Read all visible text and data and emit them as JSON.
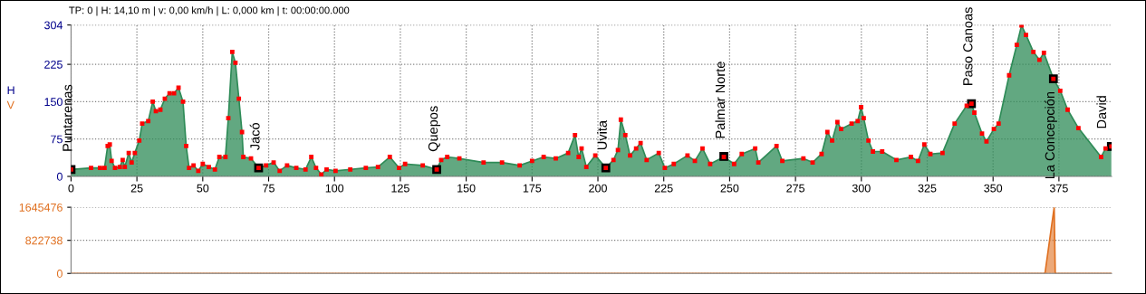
{
  "chart_data": [
    {
      "type": "area",
      "title": "TP: 0 | H: 14,10 m | v: 0,00 km/h | L: 0,000 km | t: 00:00:00.000",
      "ylabel": "H",
      "xlim": [
        0,
        395
      ],
      "xticks": [
        0,
        25,
        50,
        75,
        100,
        125,
        150,
        175,
        200,
        225,
        250,
        275,
        300,
        325,
        350,
        375
      ],
      "ylim": [
        0,
        304
      ],
      "yticks": [
        0,
        75,
        150,
        225,
        304
      ],
      "grid": true,
      "legend": false,
      "x": [
        0,
        7.6,
        11,
        12.7,
        13.9,
        14.7,
        15.4,
        16.7,
        18.5,
        19.6,
        20.4,
        21.9,
        23,
        24.2,
        25.9,
        27,
        29.3,
        31,
        32.2,
        33.9,
        35.6,
        37.4,
        39.1,
        40.8,
        42.5,
        43.7,
        44.8,
        46.5,
        48.3,
        50,
        52.3,
        54.6,
        56.3,
        58.6,
        59.7,
        61.2,
        62.4,
        63.7,
        64.9,
        65.4,
        68.3,
        71.2,
        74,
        76.9,
        79.2,
        82,
        85.5,
        89,
        91.2,
        93,
        95,
        97,
        100.4,
        106,
        111.9,
        116.5,
        121,
        124.5,
        126.8,
        133.5,
        138.8,
        140.5,
        142.8,
        147.4,
        156.6,
        163.6,
        170.3,
        175,
        179.4,
        184,
        188.7,
        191.3,
        192.7,
        193.8,
        195.6,
        199,
        203,
        205.9,
        207.6,
        208.7,
        210.4,
        212.2,
        214.5,
        216.2,
        218.5,
        223.1,
        225.4,
        228.8,
        234,
        236.8,
        239.7,
        242.6,
        247.8,
        251.7,
        254.6,
        259.7,
        260.9,
        267.8,
        270,
        278,
        281.5,
        284.9,
        287.1,
        288.9,
        290.9,
        292.3,
        296.3,
        298.6,
        299.9,
        300.9,
        302.7,
        304.4,
        307.9,
        313.3,
        318.8,
        321.5,
        323.9,
        326.2,
        330.8,
        335.4,
        340,
        341.8,
        342.9,
        345.8,
        347.5,
        350.3,
        352.1,
        356.1,
        359,
        360.8,
        362.5,
        365.3,
        367.6,
        369.3,
        372.9,
        375.5,
        378.3,
        382.4,
        391,
        392.7,
        394.9
      ],
      "series": [
        {
          "type": "area",
          "color": "#2e8b57",
          "values": [
            14,
            17,
            17,
            17,
            61,
            64,
            31,
            17,
            19,
            33,
            19,
            47,
            28,
            47,
            72,
            106,
            111,
            150,
            131,
            134,
            156,
            167,
            167,
            178,
            150,
            61,
            17,
            22,
            11,
            25,
            19,
            14,
            39,
            39,
            117,
            250,
            228,
            156,
            89,
            39,
            36,
            17,
            22,
            28,
            11,
            22,
            17,
            14,
            39,
            17,
            4,
            14,
            11,
            14,
            17,
            19,
            39,
            17,
            25,
            22,
            14,
            33,
            39,
            36,
            28,
            28,
            22,
            31,
            39,
            36,
            47,
            83,
            39,
            56,
            19,
            42,
            17,
            33,
            53,
            114,
            83,
            42,
            56,
            67,
            33,
            47,
            17,
            25,
            42,
            31,
            56,
            25,
            39,
            25,
            45,
            56,
            28,
            61,
            31,
            36,
            28,
            45,
            89,
            72,
            109,
            95,
            106,
            111,
            139,
            117,
            72,
            50,
            50,
            33,
            39,
            31,
            64,
            45,
            47,
            106,
            142,
            146,
            128,
            86,
            70,
            95,
            106,
            203,
            264,
            303,
            284,
            250,
            234,
            248,
            196,
            172,
            134,
            97,
            39,
            56,
            60
          ]
        },
        {
          "type": "scatter",
          "color": "#ff0000",
          "marker": "square",
          "values": [
            14,
            17,
            17,
            17,
            61,
            64,
            31,
            17,
            19,
            33,
            19,
            47,
            28,
            47,
            72,
            106,
            111,
            150,
            131,
            134,
            156,
            167,
            167,
            178,
            150,
            61,
            17,
            22,
            11,
            25,
            19,
            14,
            39,
            39,
            117,
            250,
            228,
            156,
            89,
            39,
            36,
            17,
            22,
            28,
            11,
            22,
            17,
            14,
            39,
            17,
            4,
            14,
            11,
            14,
            17,
            19,
            39,
            17,
            25,
            22,
            14,
            33,
            39,
            36,
            28,
            28,
            22,
            31,
            39,
            36,
            47,
            83,
            39,
            56,
            19,
            42,
            17,
            33,
            53,
            114,
            83,
            42,
            56,
            67,
            33,
            47,
            17,
            25,
            42,
            31,
            56,
            25,
            39,
            25,
            45,
            56,
            28,
            61,
            31,
            36,
            28,
            45,
            89,
            72,
            109,
            95,
            106,
            111,
            139,
            117,
            72,
            50,
            50,
            33,
            39,
            31,
            64,
            45,
            47,
            106,
            142,
            146,
            128,
            86,
            70,
            95,
            106,
            203,
            264,
            303,
            284,
            250,
            234,
            248,
            196,
            172,
            134,
            97,
            39,
            56,
            60
          ]
        }
      ],
      "annotations": [
        {
          "text": "Puntarenas",
          "x": 0,
          "y": 14
        },
        {
          "text": "Jacó",
          "x": 71.2,
          "y": 17
        },
        {
          "text": "Quepos",
          "x": 138.8,
          "y": 14
        },
        {
          "text": "Uvita",
          "x": 203,
          "y": 17
        },
        {
          "text": "Palmar Norte",
          "x": 247.8,
          "y": 40
        },
        {
          "text": "Paso Canoas",
          "x": 341.8,
          "y": 146
        },
        {
          "text": "La Concepción",
          "x": 372.9,
          "y": 196
        },
        {
          "text": "David",
          "x": 394.9,
          "y": 60
        }
      ]
    },
    {
      "type": "area",
      "ylabel": "V",
      "xlim": [
        0,
        395
      ],
      "ylim": [
        0,
        1645476
      ],
      "yticks": [
        0,
        822738,
        1645476
      ],
      "grid": "y",
      "tick_labels": "y",
      "x": [
        0,
        369.7,
        373.2,
        373.6,
        395
      ],
      "series": [
        {
          "color": "#e07020",
          "values": [
            0,
            0,
            1645476,
            0,
            0
          ]
        }
      ]
    }
  ]
}
